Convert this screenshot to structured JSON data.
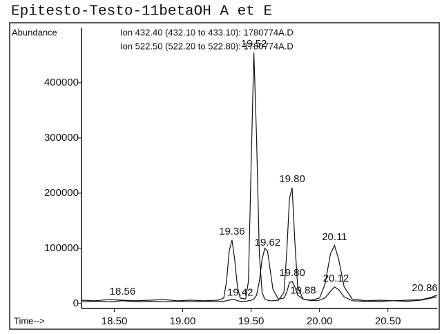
{
  "chart_data": {
    "type": "line",
    "title": "Epitesto-Testo-11betaOH A et E",
    "y_label": "Abundance",
    "x_label": "Time-->",
    "x": [
      18.26,
      18.36,
      18.46,
      18.56,
      18.66,
      18.76,
      18.86,
      18.96,
      19.06,
      19.16,
      19.26,
      19.3,
      19.32,
      19.34,
      19.36,
      19.38,
      19.4,
      19.42,
      19.46,
      19.48,
      19.5,
      19.52,
      19.54,
      19.56,
      19.58,
      19.6,
      19.62,
      19.64,
      19.66,
      19.7,
      19.74,
      19.76,
      19.78,
      19.8,
      19.82,
      19.84,
      19.88,
      19.94,
      20.0,
      20.04,
      20.08,
      20.11,
      20.14,
      20.18,
      20.24,
      20.34,
      20.44,
      20.54,
      20.64,
      20.74,
      20.8,
      20.86
    ],
    "series": [
      {
        "name": "Ion 432.40 (432.10 to 433.10): 1780774A.D",
        "color": "#111111",
        "values": [
          6000,
          5000,
          7000,
          6000,
          5000,
          6000,
          7000,
          5000,
          6000,
          5000,
          6000,
          10000,
          40000,
          95000,
          115000,
          80000,
          30000,
          10000,
          8000,
          40000,
          250000,
          455000,
          300000,
          90000,
          20000,
          8000,
          6000,
          5000,
          5000,
          6000,
          20000,
          90000,
          190000,
          210000,
          110000,
          30000,
          8000,
          6000,
          10000,
          35000,
          90000,
          105000,
          80000,
          30000,
          8000,
          5000,
          6000,
          5000,
          6000,
          7000,
          10000,
          15000
        ],
        "peak_labels": [
          18.56,
          19.36,
          19.52,
          {
            "value": 19.8,
            "label": "19.80"
          },
          20.11
        ]
      },
      {
        "name": "Ion 522.50 (522.20 to 522.80): 1780774A.D",
        "color": "#111111",
        "values": [
          3000,
          4000,
          3000,
          5000,
          3000,
          4000,
          3000,
          4000,
          3000,
          4000,
          3000,
          4000,
          5000,
          6000,
          8000,
          7000,
          5000,
          4000,
          4000,
          5000,
          6000,
          8000,
          15000,
          40000,
          80000,
          100000,
          95000,
          60000,
          25000,
          8000,
          10000,
          20000,
          38000,
          40000,
          30000,
          15000,
          8000,
          5000,
          6000,
          10000,
          22000,
          30000,
          25000,
          12000,
          5000,
          4000,
          4000,
          5000,
          4000,
          6000,
          9000,
          12000
        ],
        "peak_labels": [
          19.42,
          19.62,
          {
            "value": 19.8,
            "label": "19.80"
          },
          19.88,
          20.12,
          20.86
        ]
      }
    ],
    "xlim": [
      18.26,
      20.86
    ],
    "ylim": [
      -9000,
      500000
    ],
    "xticks": [
      {
        "value": 18.5,
        "label": "18.50"
      },
      {
        "value": 19,
        "label": "19.00"
      },
      {
        "value": 19.5,
        "label": "19.50"
      },
      {
        "value": 20,
        "label": "20.00"
      },
      {
        "value": 20.5,
        "label": "20.50"
      }
    ],
    "yticks": [
      0,
      100000,
      200000,
      300000,
      400000
    ],
    "grid": false
  }
}
